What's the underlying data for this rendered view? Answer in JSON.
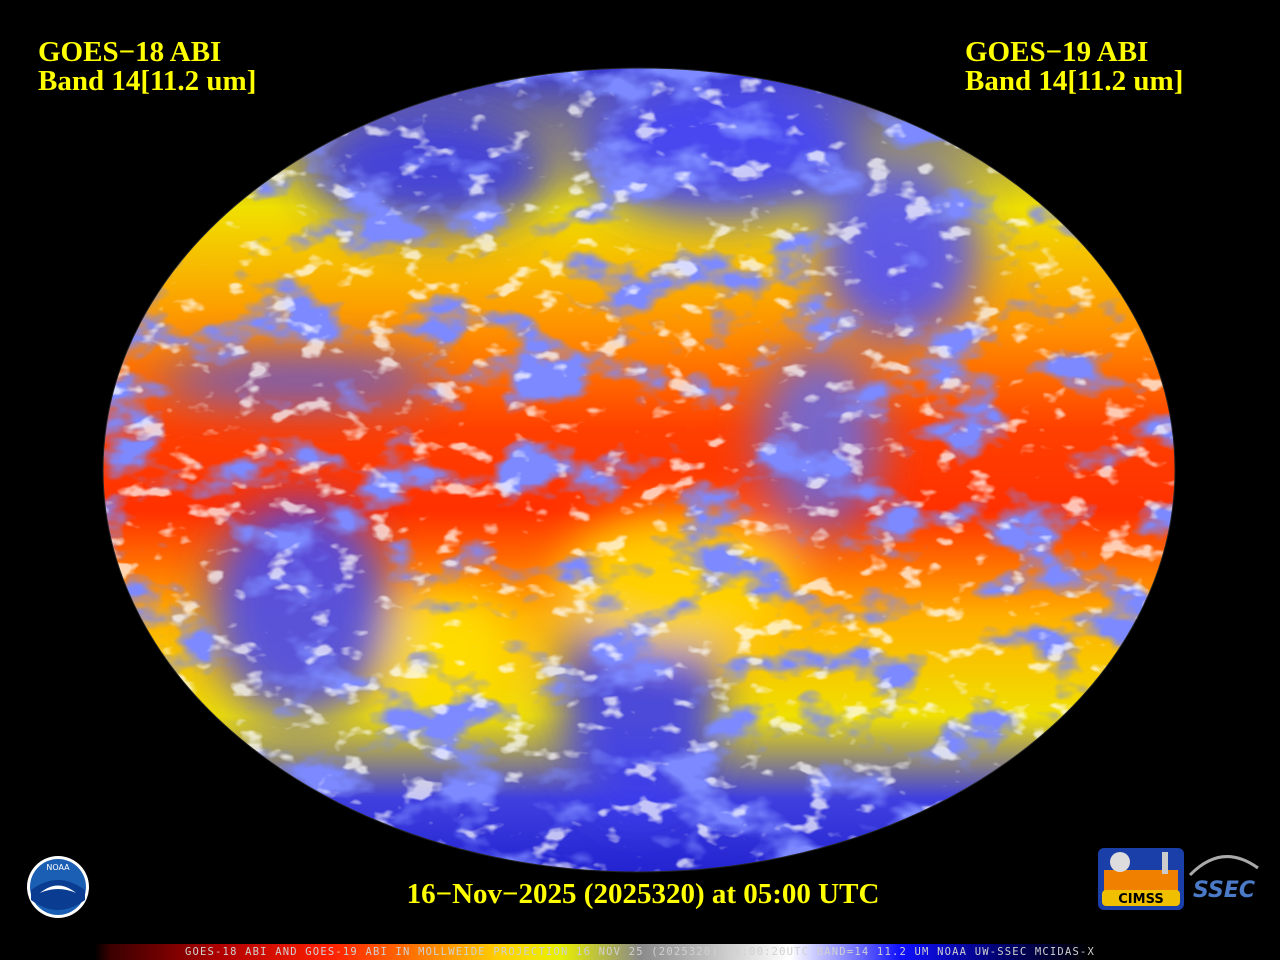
{
  "header": {
    "left": {
      "satellite": "GOES−18 ABI",
      "band": "Band 14[11.2 um]"
    },
    "right": {
      "satellite": "GOES−19 ABI",
      "band": "Band 14[11.2 um]"
    }
  },
  "timestamp": "16−Nov−2025 (2025320) at 05:00 UTC",
  "logos": {
    "noaa": "NOAA",
    "cimss": "CIMSS",
    "ssec": "SSEC"
  },
  "footer": "GOES-18 ABI AND GOES-19 ABI IN MOLLWEIDE PROJECTION 16 NOV 25 (2025320) 05:00:20UTC BAND=14 11.2 UM NOAA UW-SSEC MCIDAS-X"
}
